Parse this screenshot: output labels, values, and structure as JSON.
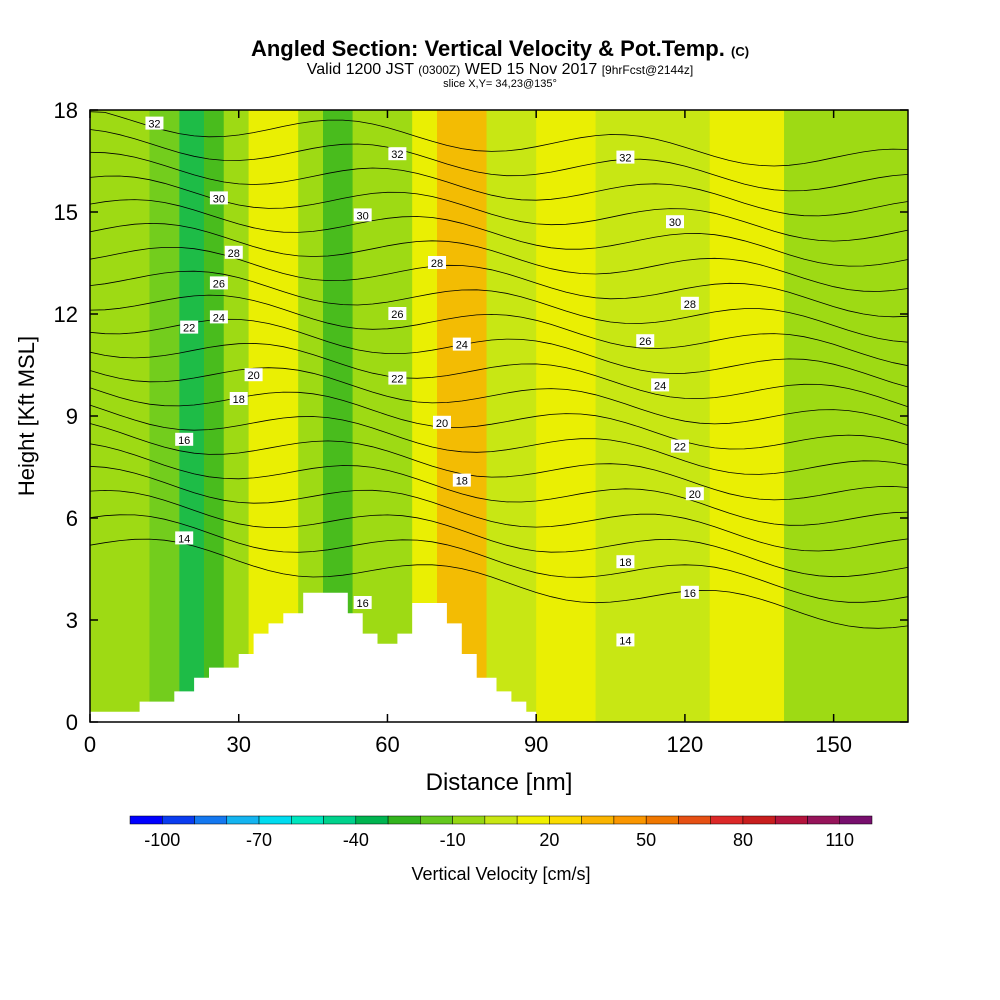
{
  "header": {
    "title": "Angled Section: Vertical Velocity & Pot.Temp.",
    "title_unit": "(C)",
    "valid_prefix": "Valid 1200 JST",
    "valid_zulu": "(0300Z)",
    "valid_date": "WED 15 Nov 2017",
    "forecast": "[9hrFcst@2144z]",
    "slice": "slice X,Y= 34,23@135°"
  },
  "chart_data": {
    "type": "heatmap",
    "xlabel": "Distance [nm]",
    "ylabel": "Height [Kft MSL]",
    "xlim": [
      0,
      165
    ],
    "ylim": [
      0,
      18
    ],
    "xticks": [
      0,
      30,
      60,
      90,
      120,
      150
    ],
    "yticks": [
      0,
      3,
      6,
      9,
      12,
      15,
      18
    ],
    "colorbar": {
      "label": "Vertical Velocity [cm/s]",
      "tick_labels": [
        "-100",
        "-70",
        "-40",
        "-10",
        "20",
        "50",
        "80",
        "110"
      ],
      "tick_values": [
        -100,
        -70,
        -40,
        -10,
        20,
        50,
        80,
        110
      ],
      "range": [
        -110,
        120
      ],
      "colors": [
        "#0000ff",
        "#0a3cf0",
        "#1478f0",
        "#14b4f0",
        "#00dcf0",
        "#00e6be",
        "#00d28c",
        "#00b450",
        "#32b41e",
        "#64c81e",
        "#96d714",
        "#c8e614",
        "#f0f000",
        "#fadc00",
        "#fab400",
        "#fa9600",
        "#f07800",
        "#e65014",
        "#dc2828",
        "#c81e1e",
        "#b4143c",
        "#96145a",
        "#780f6e"
      ]
    },
    "velocity_bands": [
      {
        "x": 0,
        "w": 12,
        "v": -5
      },
      {
        "x": 12,
        "w": 6,
        "v": -20
      },
      {
        "x": 18,
        "w": 5,
        "v": -40
      },
      {
        "x": 23,
        "w": 4,
        "v": -30
      },
      {
        "x": 27,
        "w": 5,
        "v": -5
      },
      {
        "x": 32,
        "w": 10,
        "v": 10
      },
      {
        "x": 42,
        "w": 5,
        "v": -5
      },
      {
        "x": 47,
        "w": 6,
        "v": -25
      },
      {
        "x": 53,
        "w": 12,
        "v": -5
      },
      {
        "x": 65,
        "w": 5,
        "v": 10
      },
      {
        "x": 70,
        "w": 10,
        "v": 30
      },
      {
        "x": 80,
        "w": 10,
        "v": 0
      },
      {
        "x": 90,
        "w": 12,
        "v": 10
      },
      {
        "x": 102,
        "w": 15,
        "v": 5
      },
      {
        "x": 117,
        "w": 8,
        "v": 0
      },
      {
        "x": 125,
        "w": 15,
        "v": 10
      },
      {
        "x": 140,
        "w": 25,
        "v": -5
      }
    ],
    "terrain": [
      [
        0,
        0.3
      ],
      [
        10,
        0.3
      ],
      [
        10,
        0.6
      ],
      [
        17,
        0.6
      ],
      [
        17,
        0.9
      ],
      [
        21,
        0.9
      ],
      [
        21,
        1.3
      ],
      [
        24,
        1.3
      ],
      [
        24,
        1.6
      ],
      [
        30,
        1.6
      ],
      [
        30,
        2.0
      ],
      [
        33,
        2.0
      ],
      [
        33,
        2.6
      ],
      [
        36,
        2.6
      ],
      [
        36,
        2.9
      ],
      [
        39,
        2.9
      ],
      [
        39,
        3.2
      ],
      [
        43,
        3.2
      ],
      [
        43,
        3.8
      ],
      [
        52,
        3.8
      ],
      [
        52,
        3.2
      ],
      [
        55,
        3.2
      ],
      [
        55,
        2.6
      ],
      [
        58,
        2.6
      ],
      [
        58,
        2.3
      ],
      [
        62,
        2.3
      ],
      [
        62,
        2.6
      ],
      [
        65,
        2.6
      ],
      [
        65,
        3.5
      ],
      [
        72,
        3.5
      ],
      [
        72,
        2.9
      ],
      [
        75,
        2.9
      ],
      [
        75,
        2.0
      ],
      [
        78,
        2.0
      ],
      [
        78,
        1.3
      ],
      [
        82,
        1.3
      ],
      [
        82,
        0.9
      ],
      [
        85,
        0.9
      ],
      [
        85,
        0.6
      ],
      [
        88,
        0.6
      ],
      [
        88,
        0.3
      ],
      [
        90,
        0.3
      ],
      [
        90,
        0
      ]
    ],
    "isentropes": [
      14,
      15,
      16,
      17,
      18,
      19,
      20,
      21,
      22,
      23,
      24,
      25,
      26,
      27,
      28,
      29,
      30,
      31,
      32,
      33
    ],
    "contour_labels": [
      {
        "x": 13,
        "y": 17.6,
        "text": "32"
      },
      {
        "x": 62,
        "y": 16.7,
        "text": "32"
      },
      {
        "x": 108,
        "y": 16.6,
        "text": "32"
      },
      {
        "x": 26,
        "y": 15.4,
        "text": "30"
      },
      {
        "x": 55,
        "y": 14.9,
        "text": "30"
      },
      {
        "x": 118,
        "y": 14.7,
        "text": "30"
      },
      {
        "x": 29,
        "y": 13.8,
        "text": "28"
      },
      {
        "x": 70,
        "y": 13.5,
        "text": "28"
      },
      {
        "x": 121,
        "y": 12.3,
        "text": "28"
      },
      {
        "x": 26,
        "y": 12.9,
        "text": "26"
      },
      {
        "x": 62,
        "y": 12.0,
        "text": "26"
      },
      {
        "x": 112,
        "y": 11.2,
        "text": "26"
      },
      {
        "x": 26,
        "y": 11.9,
        "text": "24"
      },
      {
        "x": 75,
        "y": 11.1,
        "text": "24"
      },
      {
        "x": 115,
        "y": 9.9,
        "text": "24"
      },
      {
        "x": 20,
        "y": 11.6,
        "text": "22"
      },
      {
        "x": 62,
        "y": 10.1,
        "text": "22"
      },
      {
        "x": 119,
        "y": 8.1,
        "text": "22"
      },
      {
        "x": 33,
        "y": 10.2,
        "text": "20"
      },
      {
        "x": 71,
        "y": 8.8,
        "text": "20"
      },
      {
        "x": 122,
        "y": 6.7,
        "text": "20"
      },
      {
        "x": 30,
        "y": 9.5,
        "text": "18"
      },
      {
        "x": 75,
        "y": 7.1,
        "text": "18"
      },
      {
        "x": 108,
        "y": 4.7,
        "text": "18"
      },
      {
        "x": 19,
        "y": 8.3,
        "text": "16"
      },
      {
        "x": 55,
        "y": 3.5,
        "text": "16"
      },
      {
        "x": 121,
        "y": 3.8,
        "text": "16"
      },
      {
        "x": 19,
        "y": 5.4,
        "text": "14"
      },
      {
        "x": 108,
        "y": 2.4,
        "text": "14"
      }
    ]
  }
}
